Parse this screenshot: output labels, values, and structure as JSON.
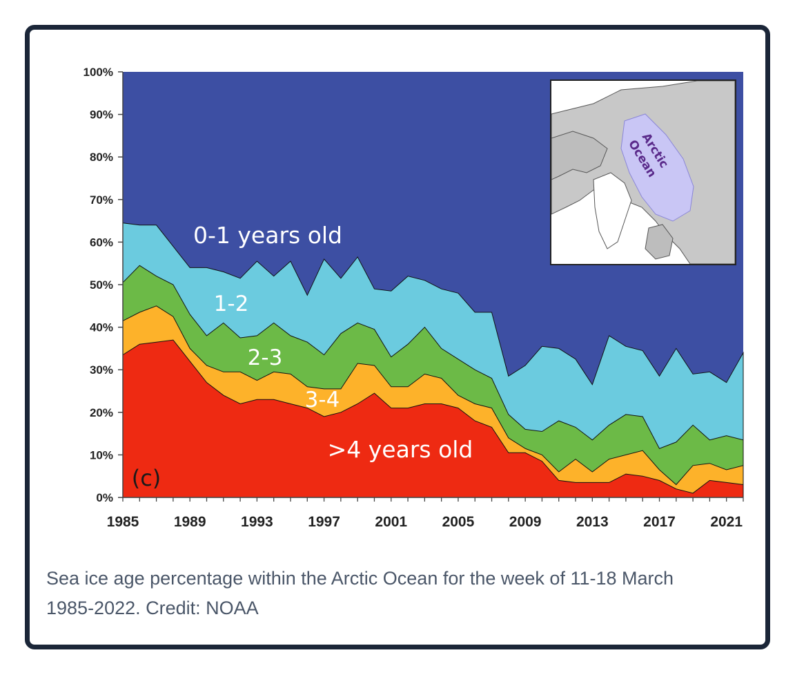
{
  "caption": {
    "line1": "Sea ice age percentage within the Arctic Ocean for the week of 11-18 March",
    "line2": "1985-2022. Credit: NOAA"
  },
  "chart_data": {
    "type": "area",
    "stacked": true,
    "panel_label": "(c)",
    "x": [
      1985,
      1986,
      1987,
      1988,
      1989,
      1990,
      1991,
      1992,
      1993,
      1994,
      1995,
      1996,
      1997,
      1998,
      1999,
      2000,
      2001,
      2002,
      2003,
      2004,
      2005,
      2006,
      2007,
      2008,
      2009,
      2010,
      2011,
      2012,
      2013,
      2014,
      2015,
      2016,
      2017,
      2018,
      2019,
      2020,
      2021,
      2022
    ],
    "x_ticks": [
      "1985",
      "1989",
      "1993",
      "1997",
      "2001",
      "2005",
      "2009",
      "2013",
      "2017",
      "2021"
    ],
    "y_ticks": [
      "0%",
      "10%",
      "20%",
      "30%",
      "40%",
      "50%",
      "60%",
      "70%",
      "80%",
      "90%",
      "100%"
    ],
    "ylim": [
      0,
      100
    ],
    "cumulative_top_series": {
      ">4": [
        33.5,
        36,
        36.5,
        37,
        32,
        27,
        24,
        22,
        23,
        23,
        22,
        21,
        19,
        20,
        22,
        24.5,
        21,
        21,
        22,
        22,
        21,
        18,
        16.5,
        10.5,
        10.5,
        8.5,
        4,
        3.5,
        3.5,
        3.5,
        5.5,
        5,
        4,
        2,
        1,
        4,
        3.5,
        3
      ],
      "3-4": [
        41.5,
        43.5,
        45,
        42.5,
        35,
        31,
        29.5,
        29.5,
        27.5,
        29.5,
        29,
        26,
        25.5,
        25.5,
        31.5,
        31,
        26,
        26,
        29,
        28,
        24,
        22,
        21,
        14,
        11.5,
        10,
        6,
        9,
        6,
        9,
        10,
        11,
        6.5,
        3,
        7.5,
        8,
        6.5,
        7.5
      ],
      "2-3": [
        50.5,
        54.5,
        52,
        50,
        43,
        38,
        41,
        37.5,
        38,
        41,
        38,
        36.5,
        33.5,
        38.5,
        41,
        39.5,
        33,
        36,
        40,
        35,
        32.5,
        30,
        28,
        19.5,
        16,
        15.5,
        18,
        16.5,
        13.5,
        17,
        19.5,
        19,
        11.5,
        13,
        17,
        13.5,
        14.5,
        13.5
      ],
      "1-2": [
        64.5,
        64,
        64,
        59,
        54,
        54,
        53,
        51.5,
        55.5,
        52,
        55.5,
        47.5,
        56,
        51.5,
        56.5,
        49,
        48.5,
        52,
        51,
        49,
        48,
        43.5,
        43.5,
        28.5,
        31,
        35.5,
        35,
        32.5,
        26.5,
        38,
        35.5,
        34.5,
        28.5,
        35,
        29,
        29.5,
        27,
        34
      ],
      "0-1": [
        100,
        100,
        100,
        100,
        100,
        100,
        100,
        100,
        100,
        100,
        100,
        100,
        100,
        100,
        100,
        100,
        100,
        100,
        100,
        100,
        100,
        100,
        100,
        100,
        100,
        100,
        100,
        100,
        100,
        100,
        100,
        100,
        100,
        100,
        100,
        100,
        100,
        100
      ]
    },
    "series_labels": [
      {
        "key": ">4",
        "label": ">4 years old"
      },
      {
        "key": "3-4",
        "label": "3-4"
      },
      {
        "key": "2-3",
        "label": "2-3"
      },
      {
        "key": "1-2",
        "label": "1-2"
      },
      {
        "key": "0-1",
        "label": "0-1 years old"
      }
    ],
    "colors": {
      ">4": "#ee2a12",
      "3-4": "#fdb22a",
      "2-3": "#6cba47",
      "1-2": "#6bcbdf",
      "0-1": "#3d4fa3"
    },
    "inset_map": {
      "label_line1": "Arctic",
      "label_line2": "Ocean"
    }
  }
}
